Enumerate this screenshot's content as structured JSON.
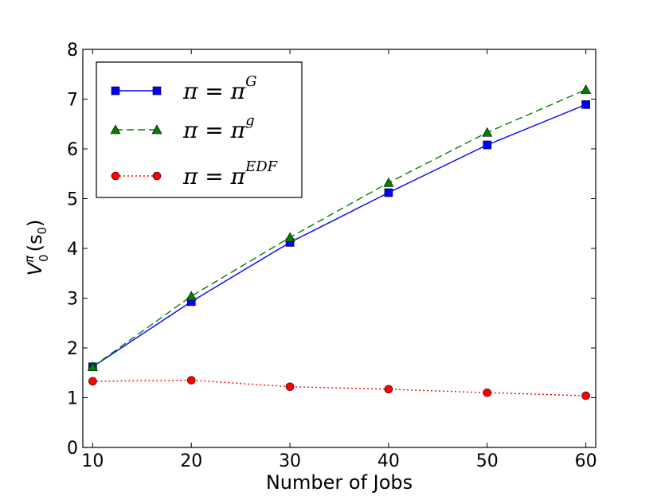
{
  "chart_data": {
    "type": "line",
    "title": "",
    "xlabel": "Number of Jobs",
    "ylabel": "V",
    "ylabel_sup": "π",
    "ylabel_sub": "0",
    "ylabel_tail": "(s",
    "ylabel_tail_sub": "0",
    "ylabel_close": ")",
    "x": [
      10,
      20,
      30,
      40,
      50,
      60
    ],
    "xlim": [
      9,
      61
    ],
    "ylim": [
      0,
      8
    ],
    "xticks": [
      10,
      20,
      30,
      40,
      50,
      60
    ],
    "yticks": [
      0,
      1,
      2,
      3,
      4,
      5,
      6,
      7,
      8
    ],
    "grid": false,
    "legend_position": "top-left",
    "series": [
      {
        "name": "π = π^G",
        "legend_main": "π = π",
        "legend_sup": "G",
        "values": [
          1.62,
          2.93,
          4.12,
          5.12,
          6.08,
          6.89
        ],
        "color": "#0000ff",
        "marker": "square",
        "linestyle": "solid"
      },
      {
        "name": "π = π^g",
        "legend_main": "π = π",
        "legend_sup": "g",
        "values": [
          1.62,
          3.04,
          4.22,
          5.32,
          6.33,
          7.19
        ],
        "color": "#008000",
        "marker": "triangle",
        "linestyle": "dashed"
      },
      {
        "name": "π = π^EDF",
        "legend_main": "π = π",
        "legend_sup": "EDF",
        "values": [
          1.33,
          1.35,
          1.22,
          1.17,
          1.1,
          1.04
        ],
        "color": "#ff0000",
        "marker": "circle",
        "linestyle": "dotted"
      }
    ]
  }
}
